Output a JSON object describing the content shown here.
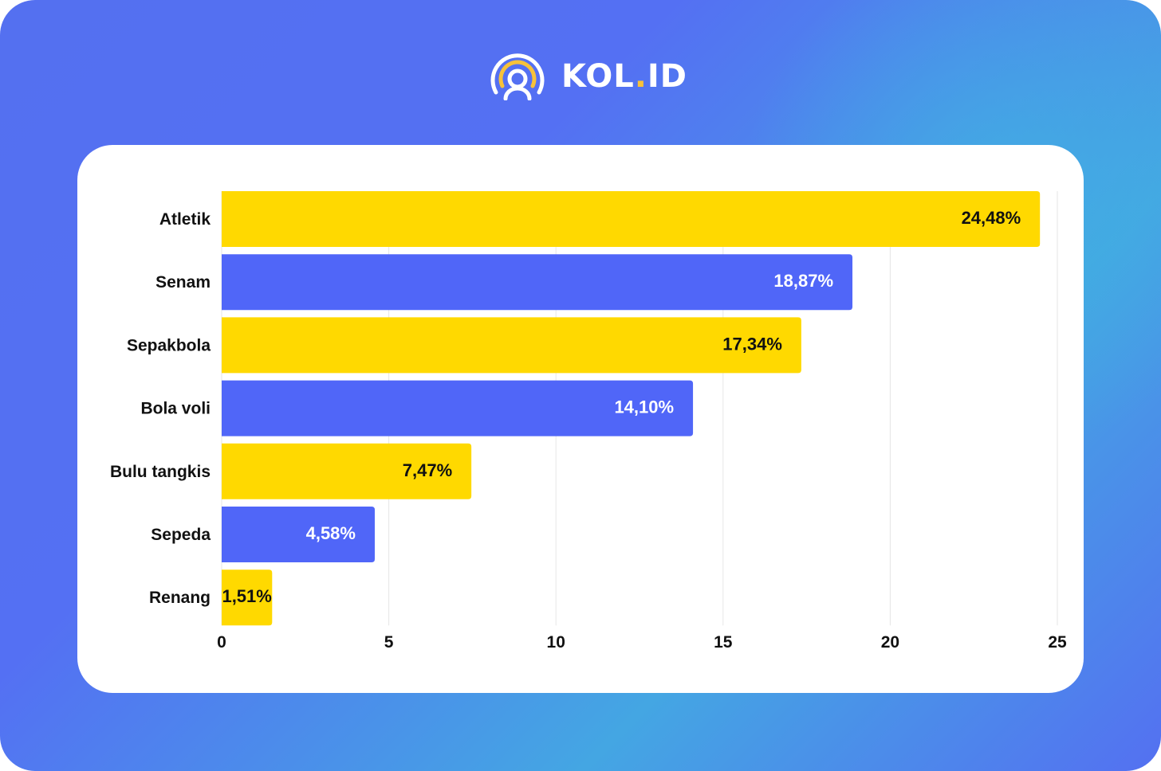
{
  "brand": {
    "name": "KOL",
    "dot": ".",
    "suffix": "ID",
    "icon": "broadcast-person-icon",
    "accent": "#f7c23a"
  },
  "colors": {
    "yellow": "#ffd900",
    "blue": "#5066f8",
    "grid": "#e6e6e6",
    "text": "#111111"
  },
  "chart_data": {
    "type": "bar",
    "orientation": "horizontal",
    "title": "",
    "xlabel": "",
    "ylabel": "",
    "xlim": [
      0,
      25
    ],
    "grid": true,
    "legend": "none",
    "x_ticks": [
      "0",
      "5",
      "10",
      "15",
      "20",
      "25"
    ],
    "x_tick_values": [
      0,
      5,
      10,
      15,
      20,
      25
    ],
    "categories": [
      "Atletik",
      "Senam",
      "Sepakbola",
      "Bola voli",
      "Bulu tangkis",
      "Sepeda",
      "Renang"
    ],
    "values": [
      24.48,
      18.87,
      17.34,
      14.1,
      7.47,
      4.58,
      1.51
    ],
    "value_labels": [
      "24,48%",
      "18,87%",
      "17,34%",
      "14,10%",
      "7,47%",
      "4,58%",
      "1,51%"
    ],
    "bar_colors": [
      "yellow",
      "blue",
      "yellow",
      "blue",
      "yellow",
      "blue",
      "yellow"
    ]
  }
}
